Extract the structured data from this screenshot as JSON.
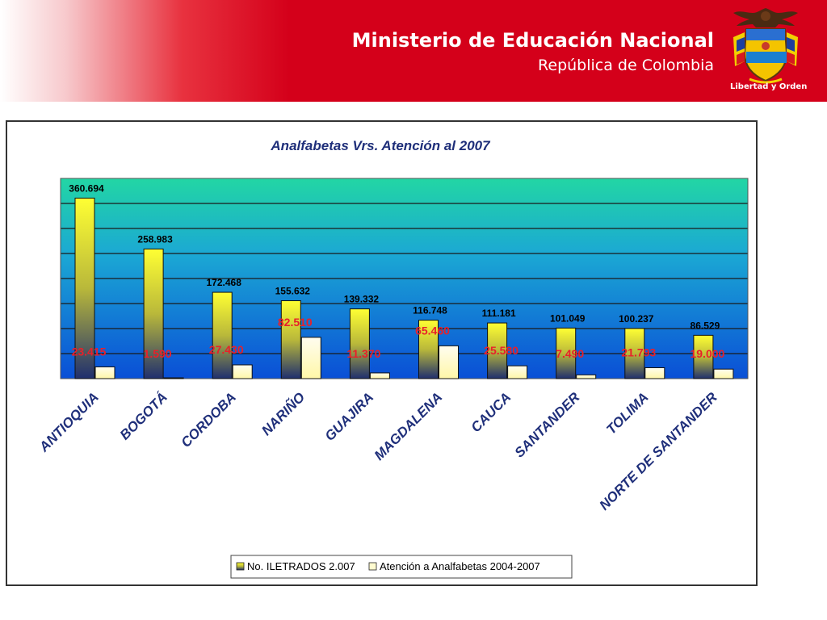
{
  "header": {
    "title": "Ministerio de Educación Nacional",
    "subtitle": "República de Colombia",
    "motto": "Libertad y Orden"
  },
  "colors": {
    "header_red": "#d4001a",
    "title_blue": "#1f2f7a",
    "value_red": "#e8202a"
  },
  "chart_data": {
    "type": "bar",
    "title": "Analfabetas Vrs. Atención al 2007",
    "categories": [
      "ANTIOQUIA",
      "BOGOTÁ",
      "CORDOBA",
      "NARIÑO",
      "GUAJIRA",
      "MAGDALENA",
      "CAUCA",
      "SANTANDER",
      "TOLIMA",
      "NORTE DE SANTANDER"
    ],
    "series": [
      {
        "name": "No. ILETRADOS 2.007",
        "values": [
          360694,
          258983,
          172468,
          155632,
          139332,
          116748,
          111181,
          101049,
          100237,
          86529
        ],
        "labels": [
          "360.694",
          "258.983",
          "172.468",
          "155.632",
          "139.332",
          "116.748",
          "111.181",
          "101.049",
          "100.237",
          "86.529"
        ]
      },
      {
        "name": "Atención a Analfabetas 2004-2007",
        "values": [
          23415,
          1590,
          27430,
          82510,
          11370,
          65460,
          25580,
          7490,
          21793,
          19000
        ],
        "labels": [
          "23.415",
          "1.590",
          "27.430",
          "82.510",
          "11.370",
          "65.460",
          "25.580",
          "7.490",
          "21.793",
          "19.000"
        ]
      }
    ],
    "ylim": [
      0,
      400000
    ],
    "grid": true,
    "legend": "bottom"
  }
}
